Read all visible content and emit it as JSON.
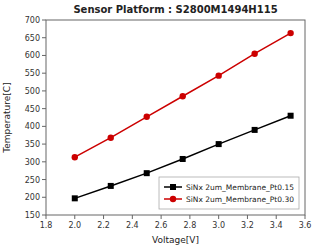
{
  "chart_data": {
    "type": "line",
    "title": "Sensor Platform : S2800M1494H115",
    "xlabel": "Voltage[V]",
    "ylabel": "Temperature[C]",
    "xlim": [
      1.8,
      3.6
    ],
    "ylim": [
      150,
      700
    ],
    "xticks": [
      1.8,
      {
        "value": 2.0,
        "label": "2.0"
      },
      2.2,
      2.4,
      2.6,
      2.8,
      {
        "value": 3.0,
        "label": "3.0"
      },
      3.2,
      3.4,
      3.6
    ],
    "yticks": [
      150,
      200,
      250,
      300,
      350,
      400,
      450,
      500,
      550,
      600,
      650,
      700
    ],
    "grid": false,
    "legend": "lower right",
    "series": [
      {
        "name": "SiNx 2um_Membrane_Pt0.15",
        "color": "#000000",
        "marker": "square",
        "x": [
          2.0,
          2.25,
          2.5,
          2.75,
          3.0,
          3.25,
          3.5
        ],
        "values": [
          197,
          232,
          268,
          308,
          350,
          390,
          430
        ]
      },
      {
        "name": "SiNx 2um_Membrane_Pt0.30",
        "color": "#cc0000",
        "marker": "circle",
        "x": [
          2.0,
          2.25,
          2.5,
          2.75,
          3.0,
          3.25,
          3.5
        ],
        "values": [
          313,
          368,
          427,
          485,
          543,
          605,
          663
        ]
      }
    ]
  }
}
